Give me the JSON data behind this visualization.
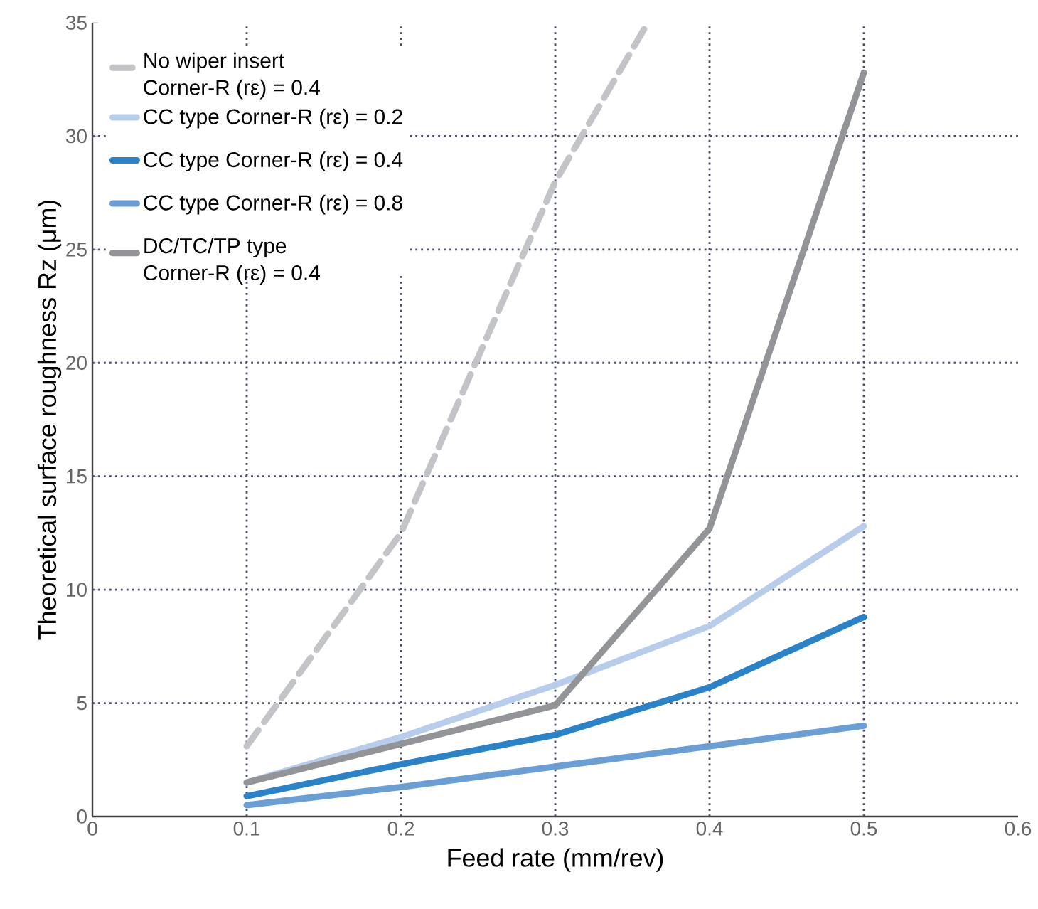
{
  "chart_data": {
    "type": "line",
    "xlabel": "Feed rate (mm/rev)",
    "ylabel": "Theoretical surface roughness Rz (μm)",
    "x": [
      0.1,
      0.2,
      0.3,
      0.4,
      0.5
    ],
    "xlim": [
      0,
      0.6
    ],
    "xticks": [
      0,
      0.1,
      0.2,
      0.3,
      0.4,
      0.5,
      0.6
    ],
    "ylim": [
      0,
      35
    ],
    "yticks": [
      0,
      5,
      10,
      15,
      20,
      25,
      30,
      35
    ],
    "grid": true,
    "legend": "top left",
    "marker": "none",
    "series": [
      {
        "name": "No wiper insert Corner-R (rε) = 0.4",
        "color": "#c3c4c8",
        "line_style": "dashed",
        "x": [
          0.1,
          0.2,
          0.3,
          0.36
        ],
        "values": [
          3.1,
          12.5,
          28,
          35
        ]
      },
      {
        "name": "CC type Corner-R (rε) = 0.2",
        "color": "#b8cdeb",
        "line_style": "solid",
        "values": [
          1.5,
          3.5,
          5.8,
          8.4,
          12.8
        ]
      },
      {
        "name": "CC type Corner-R (rε) = 0.4",
        "color": "#2a82c8",
        "line_style": "solid",
        "values": [
          0.9,
          2.3,
          3.6,
          5.7,
          8.8
        ]
      },
      {
        "name": "CC type Corner-R (rε) = 0.8",
        "color": "#6a9fd6",
        "line_style": "solid",
        "values": [
          0.5,
          1.3,
          2.2,
          3.1,
          4.0
        ]
      },
      {
        "name": "DC/TC/TP type Corner-R (rε) = 0.4",
        "color": "#939497",
        "line_style": "solid",
        "values": [
          1.5,
          3.2,
          4.9,
          12.7,
          32.8
        ]
      }
    ]
  }
}
